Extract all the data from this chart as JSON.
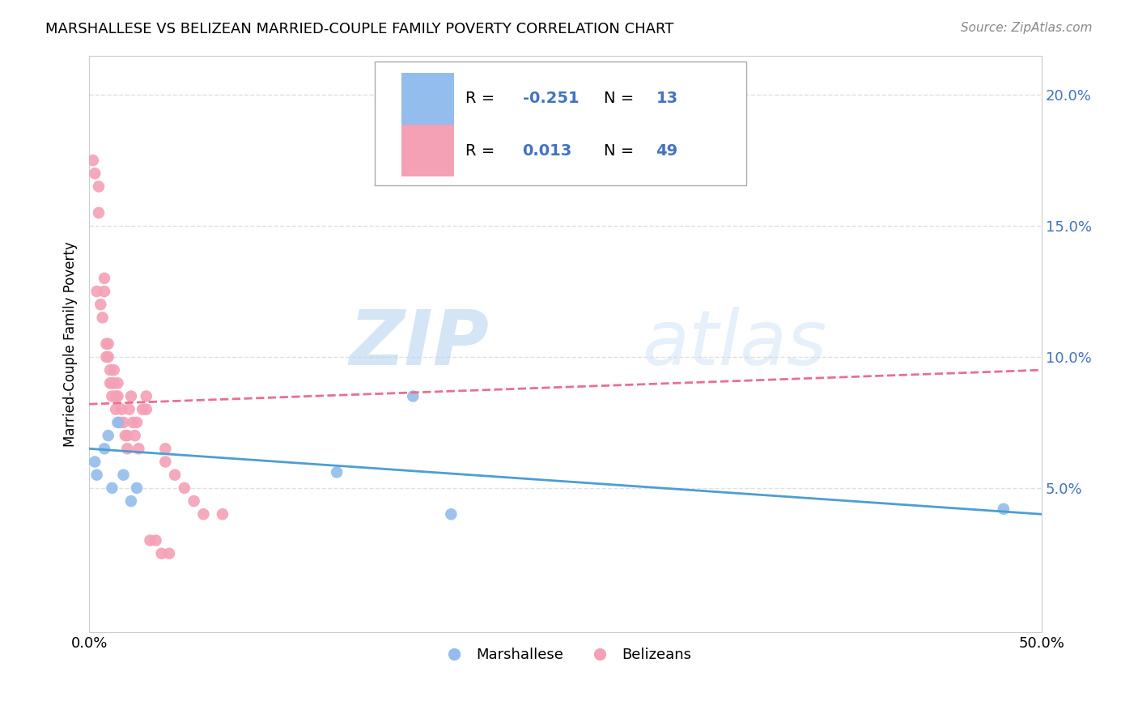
{
  "title": "MARSHALLESE VS BELIZEAN MARRIED-COUPLE FAMILY POVERTY CORRELATION CHART",
  "source": "Source: ZipAtlas.com",
  "ylabel": "Married-Couple Family Poverty",
  "watermark_zip": "ZIP",
  "watermark_atlas": "atlas",
  "xlim": [
    0.0,
    0.5
  ],
  "ylim": [
    -0.005,
    0.215
  ],
  "legend_blue_r": "-0.251",
  "legend_blue_n": "13",
  "legend_pink_r": "0.013",
  "legend_pink_n": "49",
  "legend_label_blue": "Marshallese",
  "legend_label_pink": "Belizeans",
  "marshallese_x": [
    0.003,
    0.004,
    0.008,
    0.01,
    0.012,
    0.015,
    0.018,
    0.022,
    0.025,
    0.13,
    0.17,
    0.19,
    0.48
  ],
  "marshallese_y": [
    0.06,
    0.055,
    0.065,
    0.07,
    0.05,
    0.075,
    0.055,
    0.045,
    0.05,
    0.056,
    0.085,
    0.04,
    0.042
  ],
  "belizean_x": [
    0.002,
    0.003,
    0.004,
    0.005,
    0.005,
    0.006,
    0.007,
    0.008,
    0.008,
    0.009,
    0.009,
    0.01,
    0.01,
    0.011,
    0.011,
    0.012,
    0.012,
    0.013,
    0.013,
    0.014,
    0.014,
    0.015,
    0.015,
    0.016,
    0.017,
    0.018,
    0.019,
    0.02,
    0.02,
    0.021,
    0.022,
    0.023,
    0.024,
    0.025,
    0.026,
    0.028,
    0.03,
    0.03,
    0.032,
    0.035,
    0.038,
    0.04,
    0.04,
    0.042,
    0.045,
    0.05,
    0.055,
    0.06,
    0.07
  ],
  "belizean_y": [
    0.175,
    0.17,
    0.125,
    0.165,
    0.155,
    0.12,
    0.115,
    0.13,
    0.125,
    0.105,
    0.1,
    0.1,
    0.105,
    0.095,
    0.09,
    0.085,
    0.09,
    0.09,
    0.095,
    0.085,
    0.08,
    0.09,
    0.085,
    0.075,
    0.08,
    0.075,
    0.07,
    0.065,
    0.07,
    0.08,
    0.085,
    0.075,
    0.07,
    0.075,
    0.065,
    0.08,
    0.08,
    0.085,
    0.03,
    0.03,
    0.025,
    0.065,
    0.06,
    0.025,
    0.055,
    0.05,
    0.045,
    0.04,
    0.04
  ],
  "blue_color": "#92BDEC",
  "pink_color": "#F4A0B5",
  "blue_line_color": "#4D9ED4",
  "pink_line_color": "#E87090",
  "background_color": "#ffffff",
  "grid_color": "#e0e0e0",
  "legend_value_color": "#4472C4",
  "right_tick_color": "#4472C4"
}
